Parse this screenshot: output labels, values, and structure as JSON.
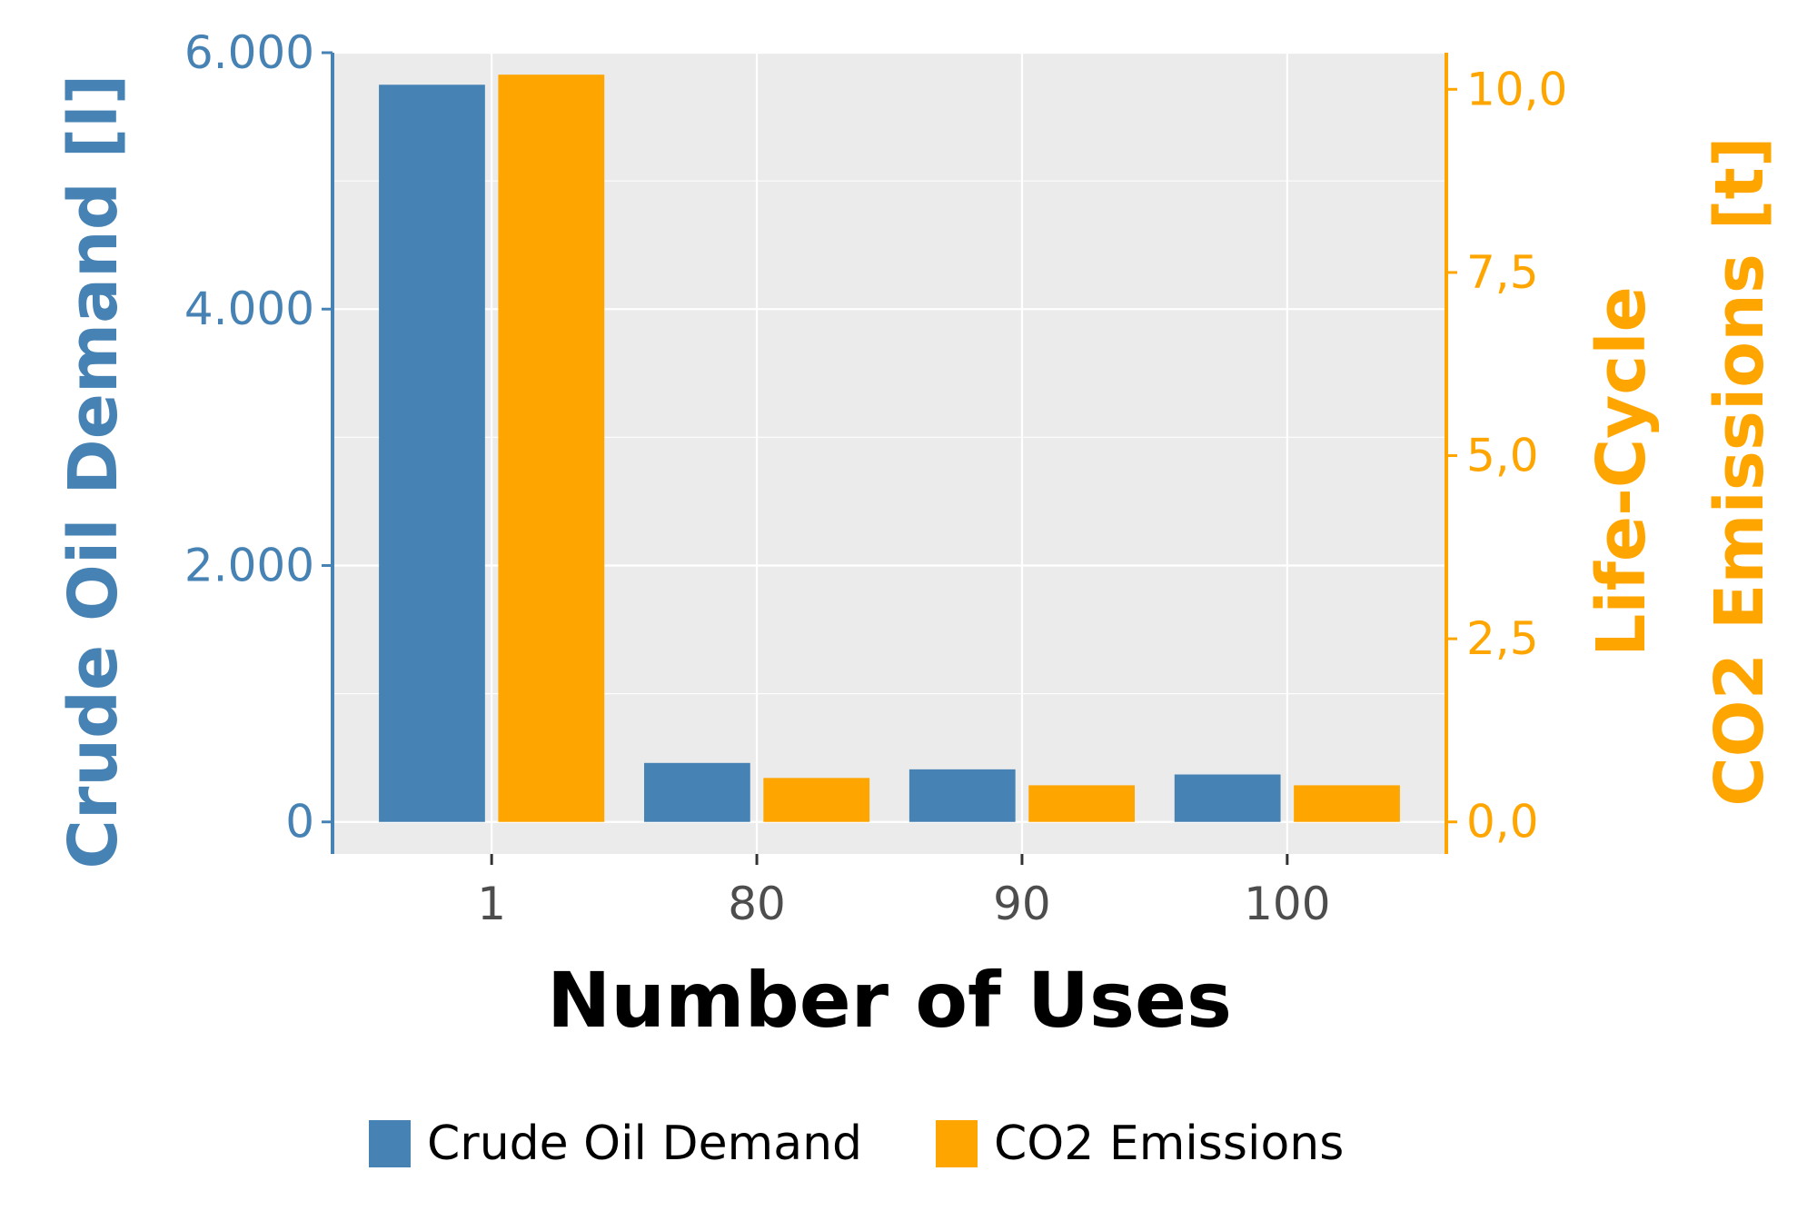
{
  "chart_data": {
    "type": "bar",
    "categories": [
      "1",
      "80",
      "90",
      "100"
    ],
    "xlabel": "Number of Uses",
    "series": [
      {
        "name": "Crude Oil Demand",
        "axis": "left",
        "color": "#4682b4",
        "values": [
          5750,
          460,
          410,
          370
        ]
      },
      {
        "name": "CO2 Emissions",
        "axis": "right",
        "color": "#ffa500",
        "values": [
          10.2,
          0.6,
          0.5,
          0.5
        ]
      }
    ],
    "y_left": {
      "label": "Crude Oil Demand [l]",
      "ylim": [
        -250,
        6000
      ],
      "ticks": [
        0,
        2000,
        4000,
        6000
      ],
      "tick_labels": [
        "0",
        "2.000",
        "4.000",
        "6.000"
      ],
      "color": "#4682b4"
    },
    "y_right": {
      "label_lines": [
        "Life-Cycle",
        "CO2 Emissions [t]"
      ],
      "ylim": [
        -0.4375,
        10.5
      ],
      "ticks": [
        0,
        2.5,
        5,
        7.5,
        10
      ],
      "tick_labels": [
        "0,0",
        "2,5",
        "5,0",
        "7,5",
        "10,0"
      ],
      "color": "#ffa500"
    },
    "grid": true,
    "legend": {
      "position": "bottom",
      "entries": [
        "Crude Oil Demand",
        "CO2 Emissions"
      ]
    }
  }
}
